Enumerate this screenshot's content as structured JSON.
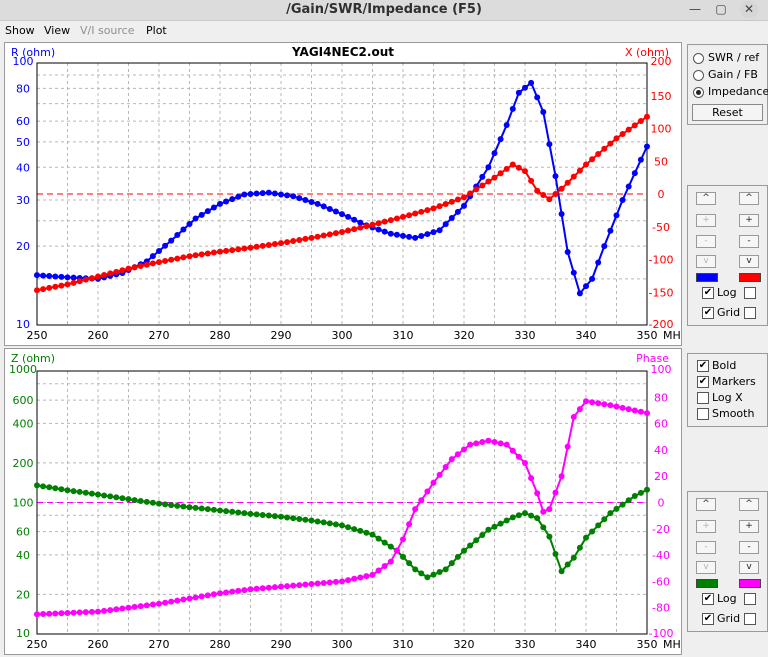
{
  "window": {
    "title": "/Gain/SWR/Impedance (F5)",
    "btn_min": "—",
    "btn_max": "▢",
    "btn_close": "✕"
  },
  "menu": {
    "show": "Show",
    "view": "View",
    "vi_source": "V/I source",
    "plot": "Plot"
  },
  "top_panel": {
    "modes": [
      {
        "label": "SWR / ref",
        "selected": false
      },
      {
        "label": "Gain / FB",
        "selected": false
      },
      {
        "label": "Impedance",
        "selected": true
      }
    ],
    "reset_label": "Reset"
  },
  "scale_buttons": {
    "up": "^",
    "plus": "+",
    "minus": "-",
    "down": "v"
  },
  "controls1": {
    "log_label": "Log",
    "grid_label": "Grid",
    "log_left": true,
    "log_right": false,
    "grid_left": true,
    "grid_right": false,
    "left_color": "#0000ff",
    "right_color": "#ff0000"
  },
  "controls2": {
    "log_label": "Log",
    "grid_label": "Grid",
    "log_left": true,
    "log_right": false,
    "grid_left": true,
    "grid_right": false,
    "left_color": "#008000",
    "right_color": "#ff00ff"
  },
  "options": [
    {
      "label": "Bold",
      "checked": true
    },
    {
      "label": "Markers",
      "checked": true
    },
    {
      "label": "Log X",
      "checked": false
    },
    {
      "label": "Smooth",
      "checked": false
    }
  ],
  "chart_data": [
    {
      "type": "line",
      "title": "YAGI4NEC2.out",
      "ylabel_left": "R (ohm)",
      "ylabel_right": "X (ohm)",
      "xunit": "MHz",
      "xlim": [
        250,
        350
      ],
      "ylim_left": [
        10,
        100
      ],
      "ylim_right": [
        -200,
        200
      ],
      "yscale_left": "log",
      "grid": true,
      "zero_line_color": "#ff0000",
      "x_ticks": [
        "250",
        "260",
        "270",
        "280",
        "290",
        "300",
        "310",
        "320",
        "330",
        "340",
        "350"
      ],
      "y_left_ticks": [
        "100",
        "80",
        "60",
        "50",
        "40",
        "30",
        "20",
        "10"
      ],
      "y_right_ticks": [
        "200",
        "150",
        "100",
        "50",
        "0",
        "-50",
        "-100",
        "-150",
        "-200"
      ],
      "series": [
        {
          "name": "R (ohm)",
          "axis": "left",
          "color": "#0000ff",
          "points": [
            [
              250,
              15.5
            ],
            [
              255,
              15.2
            ],
            [
              260,
              15
            ],
            [
              264,
              15.8
            ],
            [
              268,
              17.5
            ],
            [
              272,
              21
            ],
            [
              276,
              25.5
            ],
            [
              280,
              29
            ],
            [
              284,
              31.5
            ],
            [
              288,
              32
            ],
            [
              292,
              31
            ],
            [
              296,
              29
            ],
            [
              300,
              26.5
            ],
            [
              304,
              24
            ],
            [
              308,
              22.3
            ],
            [
              312,
              21.5
            ],
            [
              316,
              23
            ],
            [
              320,
              28.5
            ],
            [
              324,
              40
            ],
            [
              327,
              58
            ],
            [
              329,
              77
            ],
            [
              331,
              84
            ],
            [
              333,
              65
            ],
            [
              335,
              37
            ],
            [
              337,
              19
            ],
            [
              339,
              13.2
            ],
            [
              341,
              15
            ],
            [
              343,
              20
            ],
            [
              346,
              30
            ],
            [
              348,
              38
            ],
            [
              350,
              48
            ]
          ]
        },
        {
          "name": "X (ohm)",
          "axis": "right",
          "color": "#ff0000",
          "points": [
            [
              250,
              -147
            ],
            [
              255,
              -138
            ],
            [
              260,
              -126
            ],
            [
              265,
              -114
            ],
            [
              270,
              -104
            ],
            [
              275,
              -95
            ],
            [
              280,
              -88
            ],
            [
              285,
              -82
            ],
            [
              290,
              -75
            ],
            [
              295,
              -67
            ],
            [
              300,
              -58
            ],
            [
              305,
              -47
            ],
            [
              310,
              -35
            ],
            [
              315,
              -22
            ],
            [
              320,
              -5
            ],
            [
              325,
              25
            ],
            [
              328,
              45
            ],
            [
              330,
              35
            ],
            [
              332,
              5
            ],
            [
              334,
              -8
            ],
            [
              336,
              8
            ],
            [
              340,
              45
            ],
            [
              345,
              85
            ],
            [
              350,
              118
            ]
          ]
        }
      ]
    },
    {
      "type": "line",
      "ylabel_left": "Z (ohm)",
      "ylabel_right": "Phase",
      "xunit": "MHz",
      "xlim": [
        250,
        350
      ],
      "ylim_left": [
        10,
        1000
      ],
      "ylim_right": [
        -100,
        100
      ],
      "yscale_left": "log",
      "grid": true,
      "zero_line_color": "#ff00ff",
      "x_ticks": [
        "250",
        "260",
        "270",
        "280",
        "290",
        "300",
        "310",
        "320",
        "330",
        "340",
        "350"
      ],
      "y_left_ticks": [
        "1000",
        "600",
        "400",
        "200",
        "100",
        "60",
        "40",
        "20",
        "10"
      ],
      "y_right_ticks": [
        "100",
        "80",
        "60",
        "40",
        "20",
        "0",
        "-20",
        "-40",
        "-60",
        "-80",
        "-100"
      ],
      "series": [
        {
          "name": "Z (ohm)",
          "axis": "left",
          "color": "#008000",
          "points": [
            [
              250,
              135
            ],
            [
              255,
              124
            ],
            [
              260,
              115
            ],
            [
              265,
              106
            ],
            [
              270,
              98
            ],
            [
              275,
              92
            ],
            [
              280,
              87
            ],
            [
              285,
              82
            ],
            [
              290,
              78
            ],
            [
              295,
              73
            ],
            [
              300,
              67
            ],
            [
              305,
              57
            ],
            [
              309,
              43
            ],
            [
              312,
              31
            ],
            [
              314,
              27
            ],
            [
              317,
              31
            ],
            [
              320,
              43
            ],
            [
              324,
              62
            ],
            [
              328,
              77
            ],
            [
              330,
              83
            ],
            [
              332,
              76
            ],
            [
              334,
              55
            ],
            [
              336,
              30
            ],
            [
              338,
              38
            ],
            [
              340,
              54
            ],
            [
              344,
              83
            ],
            [
              348,
              112
            ],
            [
              350,
              125
            ]
          ]
        },
        {
          "name": "Phase",
          "axis": "right",
          "color": "#ff00ff",
          "points": [
            [
              250,
              -85
            ],
            [
              255,
              -84
            ],
            [
              260,
              -83
            ],
            [
              265,
              -80
            ],
            [
              270,
              -77
            ],
            [
              275,
              -73
            ],
            [
              280,
              -69
            ],
            [
              285,
              -66
            ],
            [
              290,
              -64
            ],
            [
              295,
              -62
            ],
            [
              300,
              -60
            ],
            [
              305,
              -55
            ],
            [
              308,
              -45
            ],
            [
              310,
              -28
            ],
            [
              312,
              -5
            ],
            [
              315,
              15
            ],
            [
              318,
              33
            ],
            [
              321,
              44
            ],
            [
              324,
              47
            ],
            [
              327,
              44
            ],
            [
              330,
              30
            ],
            [
              332,
              7
            ],
            [
              333,
              -7
            ],
            [
              334,
              -5
            ],
            [
              336,
              20
            ],
            [
              338,
              65
            ],
            [
              340,
              77
            ],
            [
              344,
              74
            ],
            [
              348,
              70
            ],
            [
              350,
              68
            ]
          ]
        }
      ]
    }
  ]
}
